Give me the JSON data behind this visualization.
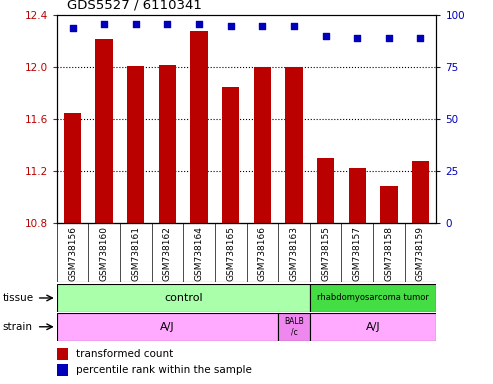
{
  "title": "GDS5527 / 6110341",
  "samples": [
    "GSM738156",
    "GSM738160",
    "GSM738161",
    "GSM738162",
    "GSM738164",
    "GSM738165",
    "GSM738166",
    "GSM738163",
    "GSM738155",
    "GSM738157",
    "GSM738158",
    "GSM738159"
  ],
  "bar_values": [
    11.65,
    12.22,
    12.01,
    12.02,
    12.28,
    11.85,
    12.0,
    12.0,
    11.3,
    11.22,
    11.08,
    11.28
  ],
  "percentile_pcts": [
    94,
    96,
    96,
    96,
    96,
    95,
    95,
    95,
    90,
    89,
    89,
    89
  ],
  "ylim_left": [
    10.8,
    12.4
  ],
  "ylim_right": [
    0,
    100
  ],
  "bar_color": "#bb0000",
  "dot_color": "#0000bb",
  "bar_bottom": 10.8,
  "yticks_left": [
    10.8,
    11.2,
    11.6,
    12.0,
    12.4
  ],
  "yticks_right": [
    0,
    25,
    50,
    75,
    100
  ],
  "control_color": "#aaffaa",
  "tumor_color": "#44dd44",
  "strain_color": "#ffaaff",
  "balbc_color": "#ee88ee",
  "legend_bar_color": "#bb0000",
  "legend_dot_color": "#0000bb",
  "legend_bar_label": "transformed count",
  "legend_dot_label": "percentile rank within the sample",
  "grid_color": "#000000",
  "background_color": "#ffffff",
  "xticklabel_bg": "#d8d8d8",
  "tissue_row_label": "tissue",
  "strain_row_label": "strain",
  "n_control": 8,
  "n_balbc": 1,
  "n_tumor": 4
}
